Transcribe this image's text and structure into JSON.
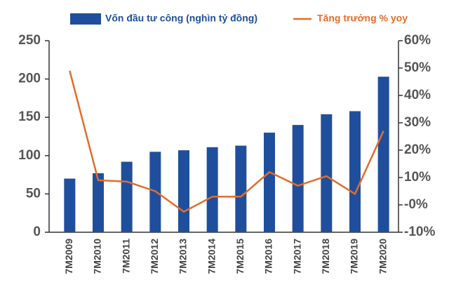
{
  "chart_data": {
    "type": "combo",
    "categories": [
      "7M2009",
      "7M2010",
      "7M2011",
      "7M2012",
      "7M2013",
      "7M2014",
      "7M2015",
      "7M2016",
      "7M2017",
      "7M2018",
      "7M2019",
      "7M2020"
    ],
    "series": [
      {
        "name": "Vốn đầu tư công (nghìn tỷ đồng)",
        "type": "bar",
        "color": "#1f4f9c",
        "axis": "y",
        "values": [
          70,
          77,
          92,
          105,
          107,
          111,
          113,
          130,
          140,
          154,
          158,
          203
        ]
      },
      {
        "name": "Tăng trưởng % yoy",
        "type": "line",
        "color": "#e46c2a",
        "axis": "y2",
        "values": [
          49,
          9,
          8.5,
          5,
          -2.5,
          3,
          3,
          12,
          7,
          10.5,
          4,
          27
        ]
      }
    ],
    "ylim": [
      0,
      250
    ],
    "yticks": [
      0,
      50,
      100,
      150,
      200,
      250
    ],
    "y2lim": [
      -10,
      60
    ],
    "y2ticks": [
      {
        "value": -10,
        "label": "-10%"
      },
      {
        "value": 0,
        "label": "-0%"
      },
      {
        "value": 10,
        "label": "10%"
      },
      {
        "value": 20,
        "label": "20%"
      },
      {
        "value": 30,
        "label": "30%"
      },
      {
        "value": 40,
        "label": "40%"
      },
      {
        "value": 50,
        "label": "50%"
      },
      {
        "value": 60,
        "label": "60%"
      }
    ],
    "grid": false
  }
}
